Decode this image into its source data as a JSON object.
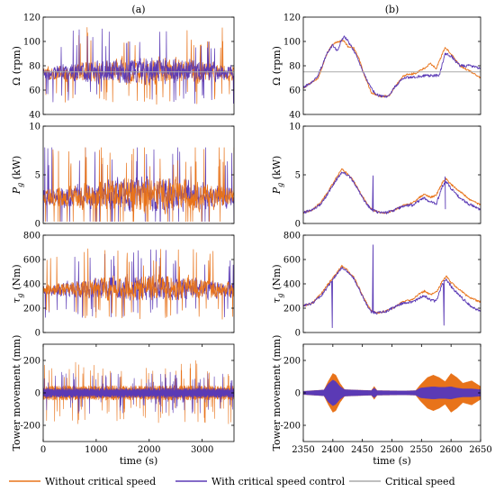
{
  "colors": {
    "without": "#E8731A",
    "with": "#5B3AB5",
    "critical": "#AAAAAA",
    "axis": "#000000"
  },
  "legend": {
    "without": "Without critical speed",
    "with": "With critical speed control",
    "critical": "Critical speed"
  },
  "chart_data": [
    {
      "id": "a-omega",
      "type": "line",
      "column_title": "(a)",
      "ylabel_sym": "Ω",
      "ylabel_unit": " (rpm)",
      "xlim": [
        0,
        3600
      ],
      "ylim": [
        40,
        120
      ],
      "yticks": [
        "40",
        "60",
        "80",
        "100",
        "120"
      ],
      "xticks": [],
      "critical_speed": 75,
      "base": 72,
      "amp": 18,
      "lo": 42,
      "hi": 118
    },
    {
      "id": "b-omega",
      "type": "line",
      "column_title": "(b)",
      "ylabel_sym": "Ω",
      "ylabel_unit": " (rpm)",
      "xlim": [
        2350,
        2650
      ],
      "ylim": [
        40,
        120
      ],
      "yticks": [
        "40",
        "60",
        "80",
        "100",
        "120"
      ],
      "xticks": [],
      "critical_speed": 75,
      "without_knots": [
        [
          2350,
          62
        ],
        [
          2360,
          65
        ],
        [
          2375,
          70
        ],
        [
          2390,
          90
        ],
        [
          2400,
          98
        ],
        [
          2410,
          100
        ],
        [
          2418,
          101
        ],
        [
          2425,
          96
        ],
        [
          2435,
          95
        ],
        [
          2445,
          85
        ],
        [
          2455,
          70
        ],
        [
          2465,
          58
        ],
        [
          2480,
          55
        ],
        [
          2495,
          55
        ],
        [
          2505,
          63
        ],
        [
          2520,
          72
        ],
        [
          2540,
          74
        ],
        [
          2555,
          78
        ],
        [
          2565,
          82
        ],
        [
          2575,
          78
        ],
        [
          2582,
          86
        ],
        [
          2590,
          95
        ],
        [
          2600,
          90
        ],
        [
          2615,
          80
        ],
        [
          2630,
          76
        ],
        [
          2650,
          70
        ]
      ],
      "with_knots": [
        [
          2350,
          62
        ],
        [
          2360,
          65
        ],
        [
          2375,
          72
        ],
        [
          2390,
          90
        ],
        [
          2400,
          97
        ],
        [
          2408,
          92
        ],
        [
          2413,
          100
        ],
        [
          2420,
          104
        ],
        [
          2430,
          97
        ],
        [
          2440,
          88
        ],
        [
          2450,
          76
        ],
        [
          2460,
          66
        ],
        [
          2470,
          58
        ],
        [
          2480,
          55
        ],
        [
          2495,
          55
        ],
        [
          2505,
          63
        ],
        [
          2520,
          70
        ],
        [
          2540,
          71
        ],
        [
          2560,
          72
        ],
        [
          2580,
          72
        ],
        [
          2590,
          90
        ],
        [
          2600,
          88
        ],
        [
          2615,
          80
        ],
        [
          2630,
          80
        ],
        [
          2650,
          78
        ]
      ]
    },
    {
      "id": "a-pg",
      "type": "line",
      "ylabel_sym": "P",
      "ylabel_sub": "g",
      "ylabel_unit": " (kW)",
      "xlim": [
        0,
        3600
      ],
      "ylim": [
        0,
        10
      ],
      "yticks": [
        "0",
        "5",
        "10"
      ],
      "xticks": [],
      "base": 2.3,
      "amp": 2.8,
      "lo": 0.2,
      "hi": 7.8
    },
    {
      "id": "b-pg",
      "type": "line",
      "ylabel_sym": "P",
      "ylabel_sub": "g",
      "ylabel_unit": " (kW)",
      "xlim": [
        2350,
        2650
      ],
      "ylim": [
        0,
        10
      ],
      "yticks": [
        "0",
        "5",
        "10"
      ],
      "xticks": [],
      "without_knots": [
        [
          2350,
          1.1
        ],
        [
          2365,
          1.4
        ],
        [
          2380,
          2.2
        ],
        [
          2395,
          3.6
        ],
        [
          2405,
          4.6
        ],
        [
          2415,
          5.6
        ],
        [
          2425,
          5.1
        ],
        [
          2435,
          4.4
        ],
        [
          2445,
          3.3
        ],
        [
          2455,
          2.3
        ],
        [
          2465,
          1.5
        ],
        [
          2475,
          1.2
        ],
        [
          2490,
          1.1
        ],
        [
          2505,
          1.4
        ],
        [
          2520,
          1.9
        ],
        [
          2535,
          2.1
        ],
        [
          2545,
          2.6
        ],
        [
          2555,
          3.0
        ],
        [
          2565,
          2.7
        ],
        [
          2575,
          2.9
        ],
        [
          2585,
          4.2
        ],
        [
          2592,
          4.6
        ],
        [
          2600,
          4.0
        ],
        [
          2615,
          3.3
        ],
        [
          2630,
          2.5
        ],
        [
          2650,
          1.9
        ]
      ],
      "with_knots": [
        [
          2350,
          1.1
        ],
        [
          2365,
          1.4
        ],
        [
          2380,
          2.0
        ],
        [
          2395,
          3.4
        ],
        [
          2405,
          4.4
        ],
        [
          2415,
          5.3
        ],
        [
          2425,
          5.0
        ],
        [
          2435,
          4.3
        ],
        [
          2445,
          3.2
        ],
        [
          2455,
          2.2
        ],
        [
          2465,
          1.4
        ],
        [
          2475,
          1.2
        ],
        [
          2490,
          1.1
        ],
        [
          2505,
          1.4
        ],
        [
          2520,
          1.8
        ],
        [
          2535,
          1.9
        ],
        [
          2545,
          2.3
        ],
        [
          2555,
          2.6
        ],
        [
          2565,
          2.2
        ],
        [
          2575,
          2.0
        ],
        [
          2585,
          3.8
        ],
        [
          2592,
          4.3
        ],
        [
          2600,
          3.6
        ],
        [
          2615,
          2.6
        ],
        [
          2630,
          2.0
        ],
        [
          2650,
          1.4
        ]
      ]
    },
    {
      "id": "a-tg",
      "type": "line",
      "ylabel_sym": "τ",
      "ylabel_sub": "g",
      "ylabel_unit": " (Nm)",
      "xlim": [
        0,
        3600
      ],
      "ylim": [
        0,
        800
      ],
      "yticks": [
        "0",
        "200",
        "400",
        "600",
        "800"
      ],
      "xticks": [],
      "base": 330,
      "amp": 170,
      "lo": 40,
      "hi": 760
    },
    {
      "id": "b-tg",
      "type": "line",
      "ylabel_sym": "τ",
      "ylabel_sub": "g",
      "ylabel_unit": " (Nm)",
      "xlim": [
        2350,
        2650
      ],
      "ylim": [
        0,
        800
      ],
      "yticks": [
        "0",
        "200",
        "400",
        "600",
        "800"
      ],
      "xticks": [],
      "without_knots": [
        [
          2350,
          220
        ],
        [
          2365,
          240
        ],
        [
          2380,
          320
        ],
        [
          2395,
          420
        ],
        [
          2405,
          480
        ],
        [
          2415,
          550
        ],
        [
          2425,
          510
        ],
        [
          2435,
          460
        ],
        [
          2445,
          360
        ],
        [
          2455,
          260
        ],
        [
          2465,
          180
        ],
        [
          2475,
          160
        ],
        [
          2490,
          175
        ],
        [
          2505,
          210
        ],
        [
          2520,
          255
        ],
        [
          2535,
          270
        ],
        [
          2545,
          315
        ],
        [
          2555,
          340
        ],
        [
          2565,
          310
        ],
        [
          2575,
          330
        ],
        [
          2585,
          420
        ],
        [
          2592,
          460
        ],
        [
          2600,
          410
        ],
        [
          2615,
          350
        ],
        [
          2630,
          290
        ],
        [
          2650,
          250
        ]
      ],
      "with_knots": [
        [
          2350,
          220
        ],
        [
          2365,
          240
        ],
        [
          2380,
          300
        ],
        [
          2395,
          400
        ],
        [
          2405,
          470
        ],
        [
          2415,
          530
        ],
        [
          2425,
          500
        ],
        [
          2435,
          450
        ],
        [
          2445,
          350
        ],
        [
          2455,
          250
        ],
        [
          2465,
          170
        ],
        [
          2475,
          160
        ],
        [
          2490,
          175
        ],
        [
          2505,
          210
        ],
        [
          2520,
          245
        ],
        [
          2535,
          250
        ],
        [
          2545,
          280
        ],
        [
          2555,
          300
        ],
        [
          2565,
          270
        ],
        [
          2575,
          255
        ],
        [
          2585,
          400
        ],
        [
          2592,
          440
        ],
        [
          2600,
          380
        ],
        [
          2615,
          300
        ],
        [
          2630,
          230
        ],
        [
          2650,
          170
        ]
      ]
    },
    {
      "id": "a-tower",
      "type": "line",
      "ylabel_sym": "Tower movement",
      "ylabel_unit": " (mm)",
      "xlim": [
        0,
        3600
      ],
      "ylim": [
        -300,
        300
      ],
      "yticks": [
        "-200",
        "0",
        "200"
      ],
      "xticks": [
        "0",
        "1000",
        "2000",
        "3000"
      ],
      "xlabel": "time (s)"
    },
    {
      "id": "b-tower",
      "type": "line",
      "ylabel_sym": "Tower movement",
      "ylabel_unit": " (mm)",
      "xlim": [
        2350,
        2650
      ],
      "ylim": [
        -300,
        300
      ],
      "yticks": [
        "-200",
        "0",
        "200"
      ],
      "xticks": [
        "2350",
        "2400",
        "2450",
        "2500",
        "2550",
        "2600",
        "2650"
      ],
      "xlabel": "time (s)",
      "without_env": [
        [
          2350,
          10
        ],
        [
          2385,
          18
        ],
        [
          2392,
          70
        ],
        [
          2400,
          120
        ],
        [
          2405,
          110
        ],
        [
          2412,
          60
        ],
        [
          2420,
          20
        ],
        [
          2465,
          14
        ],
        [
          2470,
          40
        ],
        [
          2475,
          14
        ],
        [
          2520,
          12
        ],
        [
          2540,
          14
        ],
        [
          2548,
          50
        ],
        [
          2560,
          95
        ],
        [
          2570,
          110
        ],
        [
          2580,
          95
        ],
        [
          2590,
          70
        ],
        [
          2600,
          120
        ],
        [
          2610,
          95
        ],
        [
          2620,
          60
        ],
        [
          2635,
          75
        ],
        [
          2650,
          40
        ]
      ],
      "with_env": [
        [
          2350,
          10
        ],
        [
          2385,
          18
        ],
        [
          2392,
          55
        ],
        [
          2400,
          80
        ],
        [
          2405,
          70
        ],
        [
          2412,
          40
        ],
        [
          2420,
          20
        ],
        [
          2465,
          14
        ],
        [
          2470,
          30
        ],
        [
          2475,
          14
        ],
        [
          2520,
          12
        ],
        [
          2540,
          14
        ],
        [
          2548,
          30
        ],
        [
          2560,
          35
        ],
        [
          2570,
          38
        ],
        [
          2580,
          35
        ],
        [
          2590,
          35
        ],
        [
          2600,
          38
        ],
        [
          2610,
          30
        ],
        [
          2620,
          25
        ],
        [
          2635,
          25
        ],
        [
          2650,
          20
        ]
      ]
    }
  ]
}
